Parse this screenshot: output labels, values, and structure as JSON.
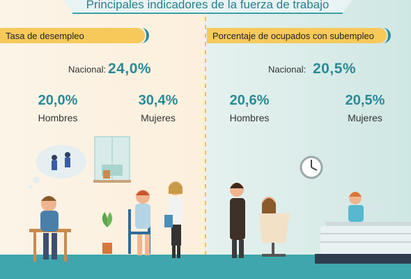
{
  "title": "Principales indicadores de la fuerza de trabajo",
  "left": {
    "tag": "Tasa de desempleo",
    "national_label": "Nacional:",
    "national_value": "24,0%",
    "men_value": "20,0%",
    "men_label": "Hombres",
    "women_value": "30,4%",
    "women_label": "Mujeres"
  },
  "right": {
    "tag": "Porcentaje de ocupados con subempleo",
    "national_label": "Nacional:",
    "national_value": "20,5%",
    "men_value": "20,6%",
    "men_label": "Hombres",
    "women_value": "20,5%",
    "women_label": "Mujeres"
  },
  "colors": {
    "accent": "#2a8a97",
    "tag": "#f6c95a",
    "floor": "#3fa6ad"
  }
}
